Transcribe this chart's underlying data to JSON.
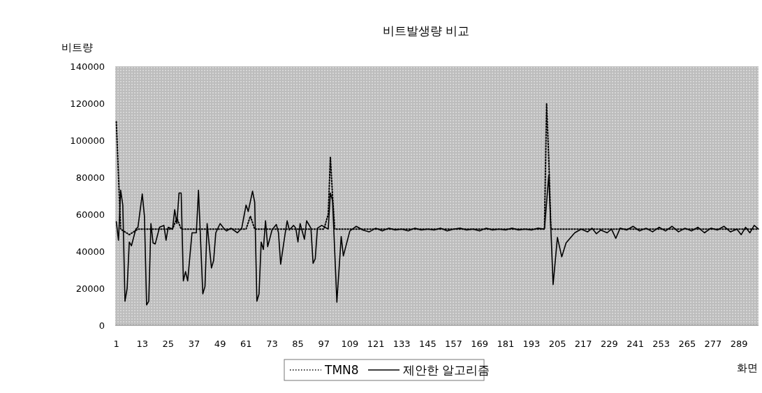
{
  "chart_data": {
    "type": "line",
    "title": "비트발생량 비교",
    "ylabel": "비트량",
    "xlabel": "화면",
    "xlim": [
      0.5,
      298
    ],
    "xticks": [
      1,
      13,
      25,
      37,
      49,
      61,
      73,
      85,
      97,
      109,
      121,
      133,
      145,
      157,
      169,
      181,
      193,
      205,
      217,
      229,
      241,
      253,
      265,
      277,
      289
    ],
    "ylim": [
      0,
      140000
    ],
    "yticks": [
      0,
      20000,
      40000,
      60000,
      80000,
      100000,
      120000,
      140000
    ],
    "legend": "bottom",
    "series": [
      {
        "name": "TMN8",
        "color": "#000000",
        "line_style": "dotted",
        "x": [
          1,
          3,
          7,
          11,
          27,
          29,
          31,
          61,
          63,
          65,
          97,
          99,
          100,
          101,
          102,
          199,
          200,
          201,
          202,
          298
        ],
        "values": [
          110000,
          52000,
          49000,
          52000,
          52000,
          58000,
          52000,
          52000,
          59000,
          52000,
          52000,
          60000,
          91000,
          70000,
          52000,
          52000,
          120000,
          90000,
          52000,
          52000
        ]
      },
      {
        "name": "제안한 알고리즘",
        "color": "#000000",
        "line_style": "solid",
        "x": [
          1,
          2,
          3,
          4,
          5,
          6,
          7,
          8,
          10,
          11,
          13,
          14,
          15,
          16,
          17,
          18,
          19,
          21,
          23,
          24,
          25,
          27,
          28,
          29,
          30,
          31,
          32,
          33,
          34,
          36,
          38,
          39,
          41,
          42,
          43,
          45,
          46,
          47,
          49,
          51,
          52,
          54,
          57,
          59,
          61,
          62,
          64,
          65,
          66,
          67,
          68,
          69,
          70,
          71,
          73,
          75,
          76,
          77,
          79,
          80,
          81,
          83,
          84,
          85,
          86,
          88,
          89,
          91,
          92,
          93,
          94,
          96,
          99,
          100,
          101,
          103,
          105,
          106,
          109,
          112,
          115,
          118,
          121,
          124,
          127,
          130,
          133,
          136,
          139,
          142,
          145,
          148,
          151,
          154,
          157,
          160,
          163,
          166,
          169,
          172,
          175,
          178,
          181,
          184,
          187,
          190,
          193,
          196,
          199,
          201,
          203,
          205,
          207,
          209,
          213,
          216,
          219,
          221,
          223,
          225,
          228,
          230,
          232,
          234,
          237,
          240,
          243,
          246,
          249,
          252,
          255,
          258,
          261,
          264,
          267,
          270,
          273,
          276,
          279,
          282,
          285,
          288,
          290,
          292,
          294,
          296,
          298
        ],
        "values": [
          56000,
          46000,
          73000,
          65000,
          13000,
          20000,
          45000,
          43000,
          52000,
          53000,
          71000,
          59000,
          11000,
          13000,
          55000,
          44500,
          44000,
          53000,
          54000,
          46000,
          53000,
          52000,
          62500,
          55000,
          71500,
          71500,
          24000,
          29000,
          24000,
          50000,
          50000,
          73000,
          17000,
          21000,
          55000,
          31000,
          35000,
          50000,
          55000,
          52000,
          51000,
          52500,
          50000,
          52500,
          65000,
          61500,
          72500,
          66500,
          13000,
          17000,
          45000,
          41000,
          56500,
          42500,
          51500,
          54500,
          50000,
          33000,
          49000,
          56500,
          51500,
          54000,
          52500,
          45000,
          55000,
          46500,
          56500,
          52500,
          33500,
          36000,
          52500,
          54000,
          52000,
          71500,
          67500,
          12500,
          48000,
          37500,
          51000,
          53500,
          51500,
          50500,
          52500,
          51000,
          52500,
          51500,
          52000,
          51000,
          52500,
          51500,
          52000,
          51500,
          52500,
          51000,
          52000,
          52500,
          51500,
          52000,
          51000,
          52500,
          51500,
          52000,
          51500,
          52500,
          51500,
          52000,
          51500,
          52500,
          52000,
          81000,
          22000,
          47500,
          37000,
          44500,
          50000,
          52000,
          50500,
          52500,
          49500,
          51500,
          50000,
          52000,
          47000,
          52500,
          51500,
          53500,
          51000,
          52500,
          50500,
          53000,
          51000,
          53500,
          50500,
          52500,
          51000,
          53000,
          50000,
          52500,
          51500,
          53500,
          50500,
          52000,
          49000,
          53000,
          50000,
          54000,
          52000
        ]
      }
    ]
  }
}
